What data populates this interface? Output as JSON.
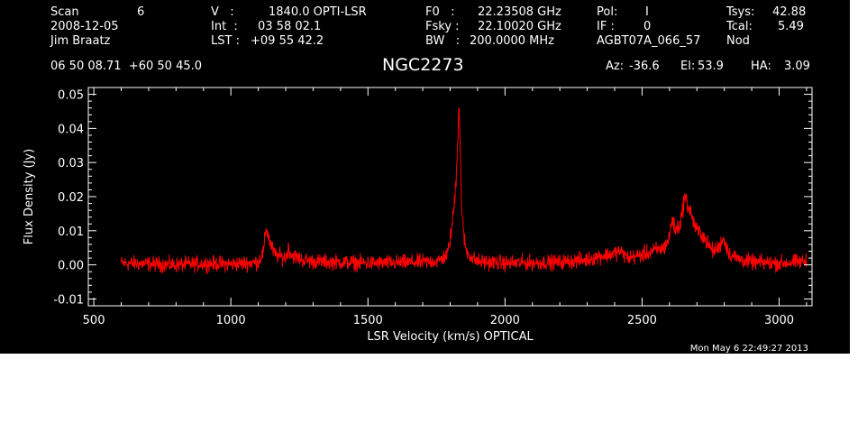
{
  "header": {
    "scan_label": "Scan",
    "scan_value": "6",
    "date": "2008-12-05",
    "observer": "Jim Braatz",
    "v_label": "V   :",
    "v_value": "1840.0 OPTI-LSR",
    "int_label": "Int  :",
    "int_value": "03 58 02.1",
    "lst_label": "LST :",
    "lst_value": "+09 55 42.2",
    "f0_label": "F0   :",
    "f0_value": "22.23508 GHz",
    "fsky_label": "Fsky :",
    "fsky_value": "22.10020 GHz",
    "bw_label": "BW   :",
    "bw_value": "200.0000 MHz",
    "pol_label": "Pol:",
    "pol_value": "I",
    "if_label": "IF :",
    "if_value": "0",
    "project": "AGBT07A_066_57",
    "tsys_label": "Tsys:",
    "tsys_value": "42.88",
    "tcal_label": "Tcal:",
    "tcal_value": "5.49",
    "mode": "Nod",
    "coords": "06 50 08.71  +60 50 45.0",
    "source": "NGC2273",
    "az_label": "Az:",
    "az_value": "-36.6",
    "el_label": "El:",
    "el_value": "53.9",
    "ha_label": "HA:",
    "ha_value": "3.09"
  },
  "timestamp": "Mon May  6 22:49:27 2013",
  "colors": {
    "background": "#000000",
    "axes": "#ffffff",
    "spectrum": "#ff0000"
  },
  "chart_data": {
    "type": "line",
    "title": "NGC2273",
    "xlabel": "LSR Velocity (km/s) OPTICAL",
    "ylabel": "Flux Density (Jy)",
    "xlim": [
      480,
      3120
    ],
    "ylim": [
      -0.012,
      0.052
    ],
    "x_ticks": [
      500,
      1000,
      1500,
      2000,
      2500,
      3000
    ],
    "x_tick_labels": [
      "500",
      "1000",
      "1500",
      "2000",
      "2500",
      "3000"
    ],
    "y_ticks": [
      -0.01,
      0.0,
      0.01,
      0.02,
      0.03,
      0.04,
      0.05
    ],
    "y_tick_labels": [
      "-0.01",
      "0.00",
      "0.01",
      "0.02",
      "0.03",
      "0.04",
      "0.05"
    ],
    "grid": false,
    "series": [
      {
        "color": "#ff0000",
        "x": [
          600,
          700,
          800,
          900,
          1000,
          1100,
          1120,
          1128,
          1135,
          1145,
          1160,
          1200,
          1210,
          1220,
          1260,
          1300,
          1400,
          1500,
          1600,
          1700,
          1760,
          1790,
          1805,
          1815,
          1822,
          1828,
          1832,
          1836,
          1840,
          1845,
          1850,
          1860,
          1880,
          1900,
          2000,
          2100,
          2200,
          2300,
          2340,
          2380,
          2420,
          2450,
          2500,
          2540,
          2580,
          2600,
          2610,
          2620,
          2640,
          2655,
          2665,
          2675,
          2690,
          2700,
          2720,
          2740,
          2760,
          2780,
          2795,
          2805,
          2820,
          2860,
          2900,
          3000,
          3100
        ],
        "y": [
          0.0005,
          0.0003,
          0.0,
          0.0004,
          0.0002,
          0.0008,
          0.004,
          0.011,
          0.009,
          0.006,
          0.003,
          0.002,
          0.005,
          0.003,
          0.0015,
          0.001,
          0.0008,
          0.0005,
          0.0006,
          0.0008,
          0.0012,
          0.003,
          0.01,
          0.018,
          0.026,
          0.038,
          0.048,
          0.036,
          0.022,
          0.013,
          0.008,
          0.004,
          0.002,
          0.001,
          0.0005,
          0.0006,
          0.0008,
          0.0015,
          0.0025,
          0.003,
          0.004,
          0.002,
          0.003,
          0.004,
          0.005,
          0.008,
          0.014,
          0.01,
          0.012,
          0.02,
          0.018,
          0.016,
          0.012,
          0.01,
          0.009,
          0.006,
          0.004,
          0.005,
          0.008,
          0.006,
          0.003,
          0.0015,
          0.0008,
          0.0005,
          0.001
        ]
      }
    ]
  }
}
